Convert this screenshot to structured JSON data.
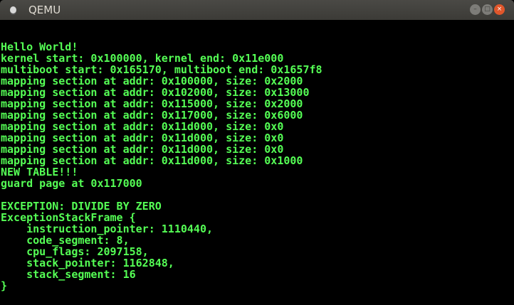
{
  "window": {
    "title": "QEMU",
    "controls": [
      "minimize-icon",
      "maximize-icon",
      "close-icon"
    ]
  },
  "colors": {
    "console_text": "#55ff55",
    "background": "#000000",
    "close_button": "#e0562b"
  },
  "console": {
    "lines": [
      "Hello World!",
      "kernel start: 0x100000, kernel end: 0x11e000",
      "multiboot start: 0x165170, multiboot end: 0x1657f8",
      "mapping section at addr: 0x100000, size: 0x2000",
      "mapping section at addr: 0x102000, size: 0x13000",
      "mapping section at addr: 0x115000, size: 0x2000",
      "mapping section at addr: 0x117000, size: 0x6000",
      "mapping section at addr: 0x11d000, size: 0x0",
      "mapping section at addr: 0x11d000, size: 0x0",
      "mapping section at addr: 0x11d000, size: 0x0",
      "mapping section at addr: 0x11d000, size: 0x1000",
      "NEW TABLE!!!",
      "guard page at 0x117000",
      "",
      "EXCEPTION: DIVIDE BY ZERO",
      "ExceptionStackFrame {",
      "    instruction_pointer: 1110440,",
      "    code_segment: 8,",
      "    cpu_flags: 2097158,",
      "    stack_pointer: 1162848,",
      "    stack_segment: 16",
      "}"
    ]
  }
}
